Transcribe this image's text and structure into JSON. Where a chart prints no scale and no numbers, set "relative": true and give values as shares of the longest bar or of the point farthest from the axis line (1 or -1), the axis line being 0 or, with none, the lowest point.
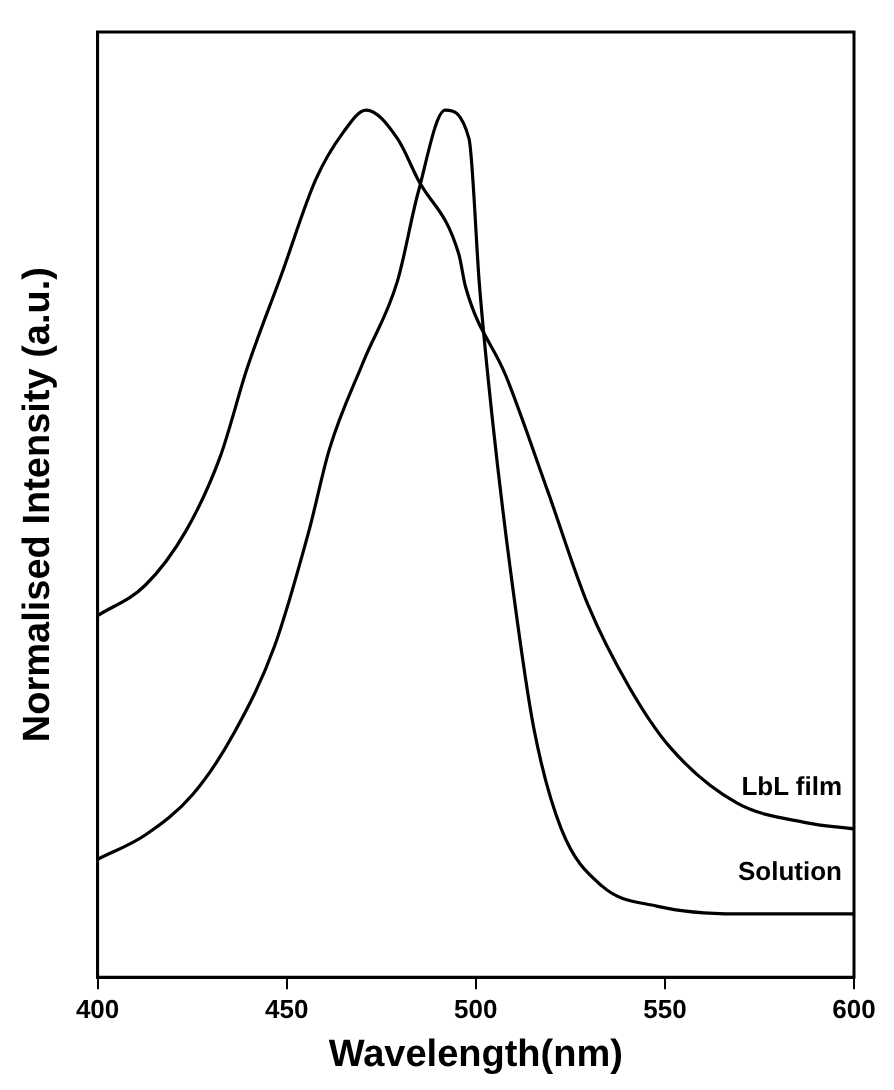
{
  "chart_data": {
    "type": "line",
    "xlabel": "Wavelength(nm)",
    "ylabel": "Normalised Intensity (a.u.)",
    "relative": true,
    "xlim": [
      400,
      600
    ],
    "xticks": [
      400,
      450,
      500,
      550,
      600
    ],
    "grid": false,
    "legend": false,
    "marker": "none",
    "line_style": "solid",
    "series": [
      {
        "name": "LbL film",
        "color": "#000000",
        "x": [
          400,
          412.6,
          423.4,
          432.4,
          439.6,
          448.6,
          457.7,
          464.9,
          471,
          479.3,
          484.7,
          495.5,
          497.3,
          508,
          518.9,
          529.7,
          540.5,
          551.4,
          569,
          587.6,
          600
        ],
        "values": [
          0.417,
          0.452,
          0.515,
          0.6,
          0.703,
          0.81,
          0.92,
          0.974,
          1,
          0.967,
          0.92,
          0.834,
          0.796,
          0.693,
          0.562,
          0.429,
          0.335,
          0.265,
          0.201,
          0.178,
          0.171
        ]
      },
      {
        "name": "Solution",
        "color": "#000000",
        "x": [
          400,
          412.6,
          425.2,
          436,
          446.8,
          455.9,
          461.3,
          470.3,
          479.3,
          484.7,
          491.9,
          498.2,
          501,
          504.5,
          509.9,
          515.3,
          522.6,
          533.4,
          547.8,
          569,
          600
        ],
        "values": [
          0.136,
          0.164,
          0.211,
          0.281,
          0.382,
          0.515,
          0.609,
          0.71,
          0.803,
          0.904,
          1,
          0.967,
          0.796,
          0.639,
          0.445,
          0.288,
          0.171,
          0.105,
          0.082,
          0.073,
          0.073
        ]
      }
    ]
  }
}
